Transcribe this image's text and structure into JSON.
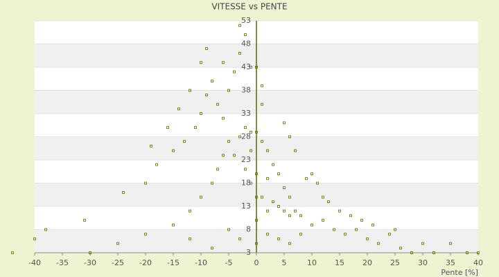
{
  "chart_data": {
    "type": "scatter",
    "title": "VITESSE vs PENTE",
    "x_label": "Pente [%]",
    "color": "#5e6b00",
    "xlim": [
      -40,
      40
    ],
    "xticks": [
      -40,
      -35,
      -30,
      -25,
      -20,
      -15,
      -10,
      -5,
      0,
      5,
      10,
      15,
      20,
      25,
      30,
      35,
      40
    ],
    "ylim": [
      3,
      53
    ],
    "yticks": [
      3,
      8,
      13,
      18,
      23,
      28,
      33,
      38,
      43,
      48,
      53
    ],
    "x": [
      -2,
      -1,
      0,
      -3,
      1,
      2,
      -1,
      3,
      4,
      2,
      5,
      6,
      3,
      4,
      5,
      6,
      7,
      8,
      2,
      1,
      -1,
      -2,
      -4,
      -5,
      -6,
      -7,
      -5,
      -4,
      -3,
      -6,
      -2,
      -3,
      -8,
      -9,
      -10,
      -11,
      -13,
      -15,
      -18,
      -20,
      -24,
      -31,
      -38,
      -40,
      -44,
      -30,
      -25,
      -20,
      -15,
      -12,
      -10,
      -8,
      -7,
      -6,
      -12,
      -8,
      -5,
      -3,
      0,
      0,
      0,
      0,
      2,
      4,
      6,
      8,
      10,
      12,
      14,
      16,
      18,
      20,
      22,
      24,
      26,
      28,
      30,
      32,
      35,
      38,
      40,
      44,
      9,
      10,
      11,
      12,
      13,
      15,
      17,
      19,
      21,
      25,
      7,
      6,
      5,
      -14,
      -12,
      -10,
      -9,
      -16,
      -19,
      1,
      1,
      -1,
      0
    ],
    "values": [
      30,
      29,
      29,
      28,
      27,
      25,
      25,
      22,
      20,
      19,
      17,
      15,
      14,
      13,
      12,
      11,
      12,
      11,
      12,
      15,
      18,
      21,
      24,
      27,
      32,
      35,
      38,
      42,
      46,
      44,
      50,
      52,
      40,
      37,
      33,
      30,
      27,
      25,
      22,
      18,
      16,
      10,
      8,
      6,
      3,
      3,
      5,
      7,
      9,
      12,
      15,
      18,
      21,
      24,
      6,
      4,
      8,
      6,
      10,
      5,
      15,
      20,
      7,
      6,
      5,
      7,
      9,
      10,
      8,
      7,
      8,
      6,
      5,
      7,
      4,
      3,
      5,
      3,
      5,
      3,
      3,
      4,
      19,
      20,
      18,
      15,
      14,
      12,
      11,
      10,
      9,
      8,
      25,
      28,
      31,
      34,
      38,
      44,
      47,
      30,
      26,
      35,
      39,
      43,
      43
    ]
  }
}
